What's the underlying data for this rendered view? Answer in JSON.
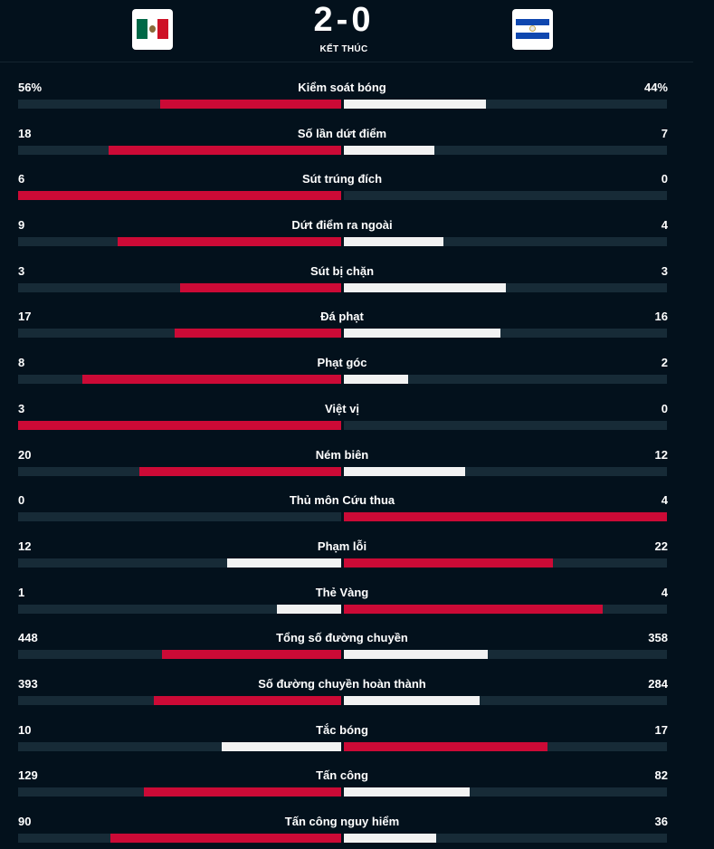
{
  "match": {
    "score": "2-0",
    "status": "KẾT THÚC",
    "home_flag_icon": "mexico-flag-icon",
    "away_flag_icon": "el-salvador-flag-icon"
  },
  "colors": {
    "background": "#03111c",
    "track": "#172b37",
    "leader": "#cc0a36",
    "trailer": "#f2f2f2"
  },
  "stats": [
    {
      "label": "Kiểm soát bóng",
      "home": "56%",
      "away": "44%",
      "home_fill": 0.56,
      "away_fill": 0.44
    },
    {
      "label": "Số lần dứt điểm",
      "home": "18",
      "away": "7",
      "home_fill": 0.72,
      "away_fill": 0.28
    },
    {
      "label": "Sút trúng đích",
      "home": "6",
      "away": "0",
      "home_fill": 1.0,
      "away_fill": 0.0
    },
    {
      "label": "Dứt điểm ra ngoài",
      "home": "9",
      "away": "4",
      "home_fill": 0.692,
      "away_fill": 0.308
    },
    {
      "label": "Sút bị chặn",
      "home": "3",
      "away": "3",
      "home_fill": 0.5,
      "away_fill": 0.5
    },
    {
      "label": "Đá phạt",
      "home": "17",
      "away": "16",
      "home_fill": 0.515,
      "away_fill": 0.485
    },
    {
      "label": "Phạt góc",
      "home": "8",
      "away": "2",
      "home_fill": 0.8,
      "away_fill": 0.2
    },
    {
      "label": "Việt vị",
      "home": "3",
      "away": "0",
      "home_fill": 1.0,
      "away_fill": 0.0
    },
    {
      "label": "Ném biên",
      "home": "20",
      "away": "12",
      "home_fill": 0.625,
      "away_fill": 0.375
    },
    {
      "label": "Thủ môn Cứu thua",
      "home": "0",
      "away": "4",
      "home_fill": 0.0,
      "away_fill": 1.0
    },
    {
      "label": "Phạm lỗi",
      "home": "12",
      "away": "22",
      "home_fill": 0.353,
      "away_fill": 0.647
    },
    {
      "label": "Thẻ Vàng",
      "home": "1",
      "away": "4",
      "home_fill": 0.2,
      "away_fill": 0.8
    },
    {
      "label": "Tổng số đường chuyền",
      "home": "448",
      "away": "358",
      "home_fill": 0.556,
      "away_fill": 0.444
    },
    {
      "label": "Số đường chuyền hoàn thành",
      "home": "393",
      "away": "284",
      "home_fill": 0.581,
      "away_fill": 0.419
    },
    {
      "label": "Tắc bóng",
      "home": "10",
      "away": "17",
      "home_fill": 0.37,
      "away_fill": 0.63
    },
    {
      "label": "Tấn công",
      "home": "129",
      "away": "82",
      "home_fill": 0.611,
      "away_fill": 0.389
    },
    {
      "label": "Tấn công nguy hiểm",
      "home": "90",
      "away": "36",
      "home_fill": 0.714,
      "away_fill": 0.286
    }
  ]
}
